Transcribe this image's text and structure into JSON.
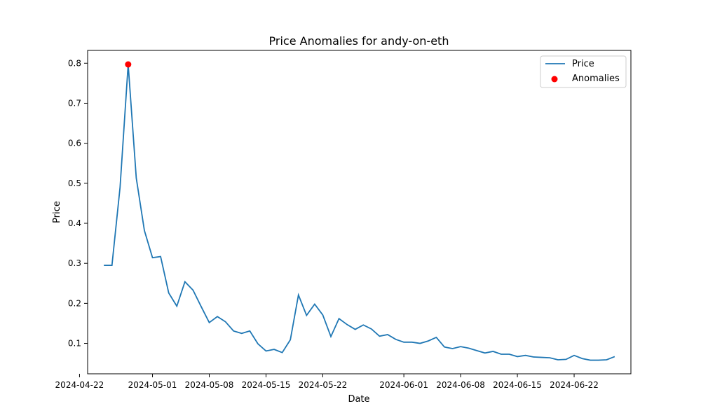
{
  "chart_data": {
    "type": "line",
    "title": "Price Anomalies for andy-on-eth",
    "xlabel": "Date",
    "ylabel": "Price",
    "xlim": [
      "2024-04-23",
      "2024-06-29"
    ],
    "ylim": [
      0.024,
      0.832
    ],
    "grid": false,
    "legend_position": "top-right",
    "x_ticks": [
      "2024-04-22",
      "2024-05-01",
      "2024-05-08",
      "2024-05-15",
      "2024-05-22",
      "2024-06-01",
      "2024-06-08",
      "2024-06-15",
      "2024-06-22"
    ],
    "y_ticks": [
      0.1,
      0.2,
      0.3,
      0.4,
      0.5,
      0.6,
      0.7,
      0.8
    ],
    "colors": {
      "price": "#1f77b4",
      "anomaly": "#ff0000"
    },
    "series": [
      {
        "name": "Price",
        "x": [
          "2024-04-25",
          "2024-04-26",
          "2024-04-27",
          "2024-04-28",
          "2024-04-29",
          "2024-04-30",
          "2024-05-01",
          "2024-05-02",
          "2024-05-03",
          "2024-05-04",
          "2024-05-05",
          "2024-05-06",
          "2024-05-07",
          "2024-05-08",
          "2024-05-09",
          "2024-05-10",
          "2024-05-11",
          "2024-05-12",
          "2024-05-13",
          "2024-05-14",
          "2024-05-15",
          "2024-05-16",
          "2024-05-17",
          "2024-05-18",
          "2024-05-19",
          "2024-05-20",
          "2024-05-21",
          "2024-05-22",
          "2024-05-23",
          "2024-05-24",
          "2024-05-25",
          "2024-05-26",
          "2024-05-27",
          "2024-05-28",
          "2024-05-29",
          "2024-05-30",
          "2024-05-31",
          "2024-06-01",
          "2024-06-02",
          "2024-06-03",
          "2024-06-04",
          "2024-06-05",
          "2024-06-06",
          "2024-06-07",
          "2024-06-08",
          "2024-06-09",
          "2024-06-10",
          "2024-06-11",
          "2024-06-12",
          "2024-06-13",
          "2024-06-14",
          "2024-06-15",
          "2024-06-16",
          "2024-06-17",
          "2024-06-18",
          "2024-06-19",
          "2024-06-20",
          "2024-06-21",
          "2024-06-22",
          "2024-06-23",
          "2024-06-24",
          "2024-06-25",
          "2024-06-26",
          "2024-06-27"
        ],
        "values": [
          0.295,
          0.295,
          0.49,
          0.797,
          0.513,
          0.382,
          0.314,
          0.317,
          0.226,
          0.193,
          0.254,
          0.233,
          0.192,
          0.152,
          0.167,
          0.154,
          0.131,
          0.125,
          0.131,
          0.099,
          0.081,
          0.085,
          0.077,
          0.109,
          0.221,
          0.17,
          0.198,
          0.171,
          0.117,
          0.162,
          0.147,
          0.135,
          0.146,
          0.136,
          0.118,
          0.122,
          0.11,
          0.103,
          0.103,
          0.1,
          0.106,
          0.115,
          0.091,
          0.087,
          0.092,
          0.088,
          0.082,
          0.076,
          0.08,
          0.073,
          0.073,
          0.067,
          0.07,
          0.066,
          0.065,
          0.064,
          0.059,
          0.06,
          0.07,
          0.062,
          0.058,
          0.058,
          0.059,
          0.067
        ]
      },
      {
        "name": "Anomalies",
        "x": [
          "2024-04-28"
        ],
        "values": [
          0.797
        ]
      }
    ]
  }
}
